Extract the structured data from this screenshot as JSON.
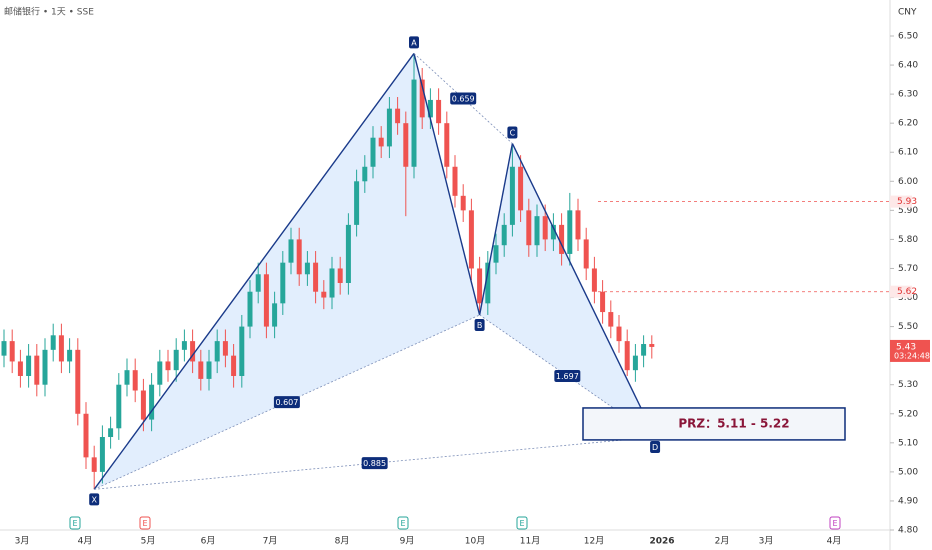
{
  "chart_data": {
    "type": "candlestick",
    "title": "邮储银行 • 1天 • SSE",
    "currency": "CNY",
    "up_color": "#26a69a",
    "down_color": "#ef5350",
    "categories": [
      "3月",
      "4月",
      "5月",
      "6月",
      "7月",
      "8月",
      "9月",
      "10月",
      "11月",
      "12月",
      "2026",
      "2月",
      "3月",
      "4月"
    ],
    "ylim": [
      4.8,
      6.5
    ],
    "yticks": [
      {
        "value": 4.8,
        "label": "4.80"
      },
      {
        "value": 4.9,
        "label": "4.90"
      },
      {
        "value": 5.0,
        "label": "5.00"
      },
      {
        "value": 5.1,
        "label": "5.10"
      },
      {
        "value": 5.2,
        "label": "5.20"
      },
      {
        "value": 5.3,
        "label": "5.30"
      },
      {
        "value": 5.4,
        "label": "5.40"
      },
      {
        "value": 5.5,
        "label": "5.50"
      },
      {
        "value": 5.6,
        "label": "5.60"
      },
      {
        "value": 5.7,
        "label": "5.70"
      },
      {
        "value": 5.8,
        "label": "5.80"
      },
      {
        "value": 5.9,
        "label": "5.90"
      },
      {
        "value": 6.0,
        "label": "6.00"
      },
      {
        "value": 6.1,
        "label": "6.10"
      },
      {
        "value": 6.2,
        "label": "6.20"
      },
      {
        "value": 6.3,
        "label": "6.30"
      },
      {
        "value": 6.4,
        "label": "6.40"
      },
      {
        "value": 6.5,
        "label": "6.50"
      }
    ],
    "open": [
      5.4,
      5.45,
      5.38,
      5.33,
      5.4,
      5.3,
      5.42,
      5.47,
      5.38,
      5.42,
      5.2,
      5.05,
      5.0,
      5.12,
      5.15,
      5.3,
      5.35,
      5.28,
      5.18,
      5.3,
      5.38,
      5.35,
      5.42,
      5.45,
      5.38,
      5.32,
      5.38,
      5.45,
      5.4,
      5.33,
      5.5,
      5.62,
      5.68,
      5.5,
      5.58,
      5.72,
      5.8,
      5.68,
      5.72,
      5.62,
      5.6,
      5.7,
      5.65,
      5.85,
      6.0,
      6.05,
      6.15,
      6.12,
      6.25,
      6.2,
      6.05,
      6.35,
      6.22,
      6.28,
      6.2,
      6.05,
      5.95,
      5.9,
      5.7,
      5.58,
      5.72,
      5.78,
      5.85,
      6.05,
      5.9,
      5.78,
      5.88,
      5.8,
      5.85,
      5.75,
      5.9,
      5.8,
      5.7,
      5.62,
      5.55,
      5.5,
      5.45,
      5.35,
      5.4,
      5.44
    ],
    "high": [
      5.49,
      5.49,
      5.42,
      5.44,
      5.44,
      5.46,
      5.51,
      5.51,
      5.46,
      5.46,
      5.24,
      5.09,
      5.16,
      5.19,
      5.34,
      5.39,
      5.39,
      5.32,
      5.34,
      5.42,
      5.42,
      5.46,
      5.49,
      5.49,
      5.42,
      5.42,
      5.49,
      5.49,
      5.44,
      5.54,
      5.66,
      5.72,
      5.72,
      5.62,
      5.76,
      5.84,
      5.84,
      5.76,
      5.76,
      5.66,
      5.74,
      5.74,
      5.89,
      6.04,
      6.09,
      6.19,
      6.19,
      6.29,
      6.29,
      6.24,
      6.44,
      6.39,
      6.32,
      6.32,
      6.24,
      6.09,
      5.99,
      5.94,
      5.74,
      5.76,
      5.82,
      5.89,
      6.13,
      6.09,
      5.94,
      5.92,
      5.92,
      5.89,
      5.89,
      5.96,
      5.94,
      5.84,
      5.74,
      5.66,
      5.59,
      5.54,
      5.49,
      5.44,
      5.47,
      5.47
    ],
    "low": [
      5.36,
      5.34,
      5.29,
      5.29,
      5.26,
      5.26,
      5.38,
      5.34,
      5.34,
      5.16,
      5.01,
      4.94,
      4.96,
      5.08,
      5.11,
      5.26,
      5.24,
      5.14,
      5.14,
      5.26,
      5.31,
      5.31,
      5.38,
      5.34,
      5.28,
      5.28,
      5.34,
      5.36,
      5.29,
      5.29,
      5.46,
      5.58,
      5.46,
      5.46,
      5.54,
      5.68,
      5.64,
      5.64,
      5.58,
      5.56,
      5.56,
      5.61,
      5.61,
      5.81,
      5.96,
      6.01,
      6.08,
      6.08,
      6.16,
      5.88,
      6.01,
      6.18,
      6.18,
      6.16,
      6.01,
      5.91,
      5.86,
      5.66,
      5.54,
      5.54,
      5.68,
      5.74,
      5.81,
      5.86,
      5.74,
      5.74,
      5.76,
      5.76,
      5.71,
      5.71,
      5.76,
      5.66,
      5.58,
      5.51,
      5.46,
      5.41,
      5.33,
      5.31,
      5.36,
      5.39
    ],
    "close": [
      5.45,
      5.38,
      5.33,
      5.4,
      5.3,
      5.42,
      5.47,
      5.38,
      5.42,
      5.2,
      5.05,
      5.0,
      5.12,
      5.15,
      5.3,
      5.35,
      5.28,
      5.18,
      5.3,
      5.38,
      5.35,
      5.42,
      5.45,
      5.38,
      5.32,
      5.38,
      5.45,
      5.4,
      5.33,
      5.5,
      5.62,
      5.68,
      5.5,
      5.58,
      5.72,
      5.8,
      5.68,
      5.72,
      5.62,
      5.6,
      5.7,
      5.65,
      5.85,
      6.0,
      6.05,
      6.15,
      6.12,
      6.25,
      6.2,
      6.05,
      6.35,
      6.22,
      6.28,
      6.2,
      6.05,
      5.95,
      5.9,
      5.7,
      5.58,
      5.72,
      5.78,
      5.85,
      6.05,
      5.9,
      5.78,
      5.88,
      5.8,
      5.85,
      5.75,
      5.9,
      5.8,
      5.7,
      5.62,
      5.55,
      5.5,
      5.45,
      5.35,
      5.4,
      5.44,
      5.43
    ],
    "pattern": [
      {
        "label": "X",
        "index": 11,
        "price": 4.94
      },
      {
        "label": "A",
        "index": 50,
        "price": 6.44
      },
      {
        "label": "B",
        "index": 58,
        "price": 5.54
      },
      {
        "label": "C",
        "index": 62,
        "price": 6.13
      },
      {
        "label": "D",
        "index": 79.4,
        "price": 5.12
      }
    ],
    "ratios": [
      0.607,
      0.659,
      1.697,
      0.885
    ],
    "prz": {
      "label": "PRZ：5.11 - 5.22",
      "low": 5.11,
      "high": 5.22
    },
    "levels": [
      5.93,
      5.62
    ],
    "last_price": 5.43,
    "countdown": "03:24:48",
    "events": [
      {
        "label": "E",
        "color": "#26a69a"
      },
      {
        "label": "E",
        "color": "#ef5350"
      },
      {
        "label": "E",
        "color": "#26a69a"
      },
      {
        "label": "E",
        "color": "#26a69a"
      },
      {
        "label": "E",
        "color": "#c040c0"
      }
    ]
  }
}
